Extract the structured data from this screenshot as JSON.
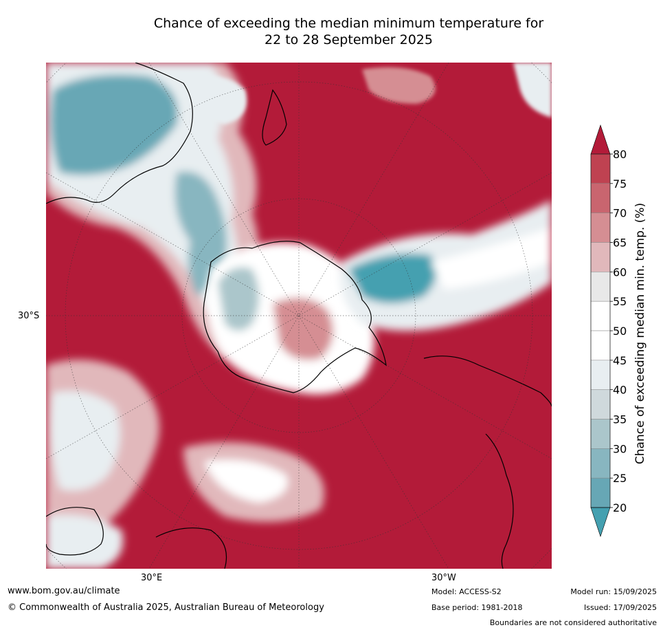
{
  "title": {
    "line1": "Chance of exceeding the median minimum temperature for",
    "line2": "22 to 28 September 2025"
  },
  "axes": {
    "lat_label": "30°S",
    "lon_label_left": "30°E",
    "lon_label_right": "30°W"
  },
  "colorbar": {
    "label": "Chance of exceeding median min. temp. (%)",
    "ticks": [
      "80",
      "75",
      "70",
      "65",
      "60",
      "55",
      "50",
      "45",
      "40",
      "35",
      "30",
      "25",
      "20"
    ],
    "bands": [
      {
        "range": ">80",
        "color": "#b31b39"
      },
      {
        "range": "75-80",
        "color": "#bf4251"
      },
      {
        "range": "70-75",
        "color": "#c9656f"
      },
      {
        "range": "65-70",
        "color": "#d58e93"
      },
      {
        "range": "60-65",
        "color": "#e1b8bb"
      },
      {
        "range": "55-60",
        "color": "#e8e8e8"
      },
      {
        "range": "50-55",
        "color": "#ffffff"
      },
      {
        "range": "45-50",
        "color": "#ffffff"
      },
      {
        "range": "40-45",
        "color": "#e8eef1"
      },
      {
        "range": "35-40",
        "color": "#cfd9dc"
      },
      {
        "range": "30-35",
        "color": "#abc6cb"
      },
      {
        "range": "25-30",
        "color": "#88b6c0"
      },
      {
        "range": "20-25",
        "color": "#67a7b5"
      },
      {
        "range": "<20",
        "color": "#44a0b0"
      }
    ]
  },
  "footer": {
    "url": "www.bom.gov.au/climate",
    "copyright": "© Commonwealth of Australia 2025, Australian Bureau of Meteorology",
    "model": "Model: ACCESS-S2",
    "base_period": "Base period: 1981-2018",
    "model_run": "Model run: 15/09/2025",
    "issued": "Issued: 17/09/2025",
    "disclaimer": "Boundaries are not considered authoritative"
  },
  "colors": {
    "warm": "#b31b39",
    "cool": "#44a0b0",
    "neutral": "#ffffff"
  }
}
